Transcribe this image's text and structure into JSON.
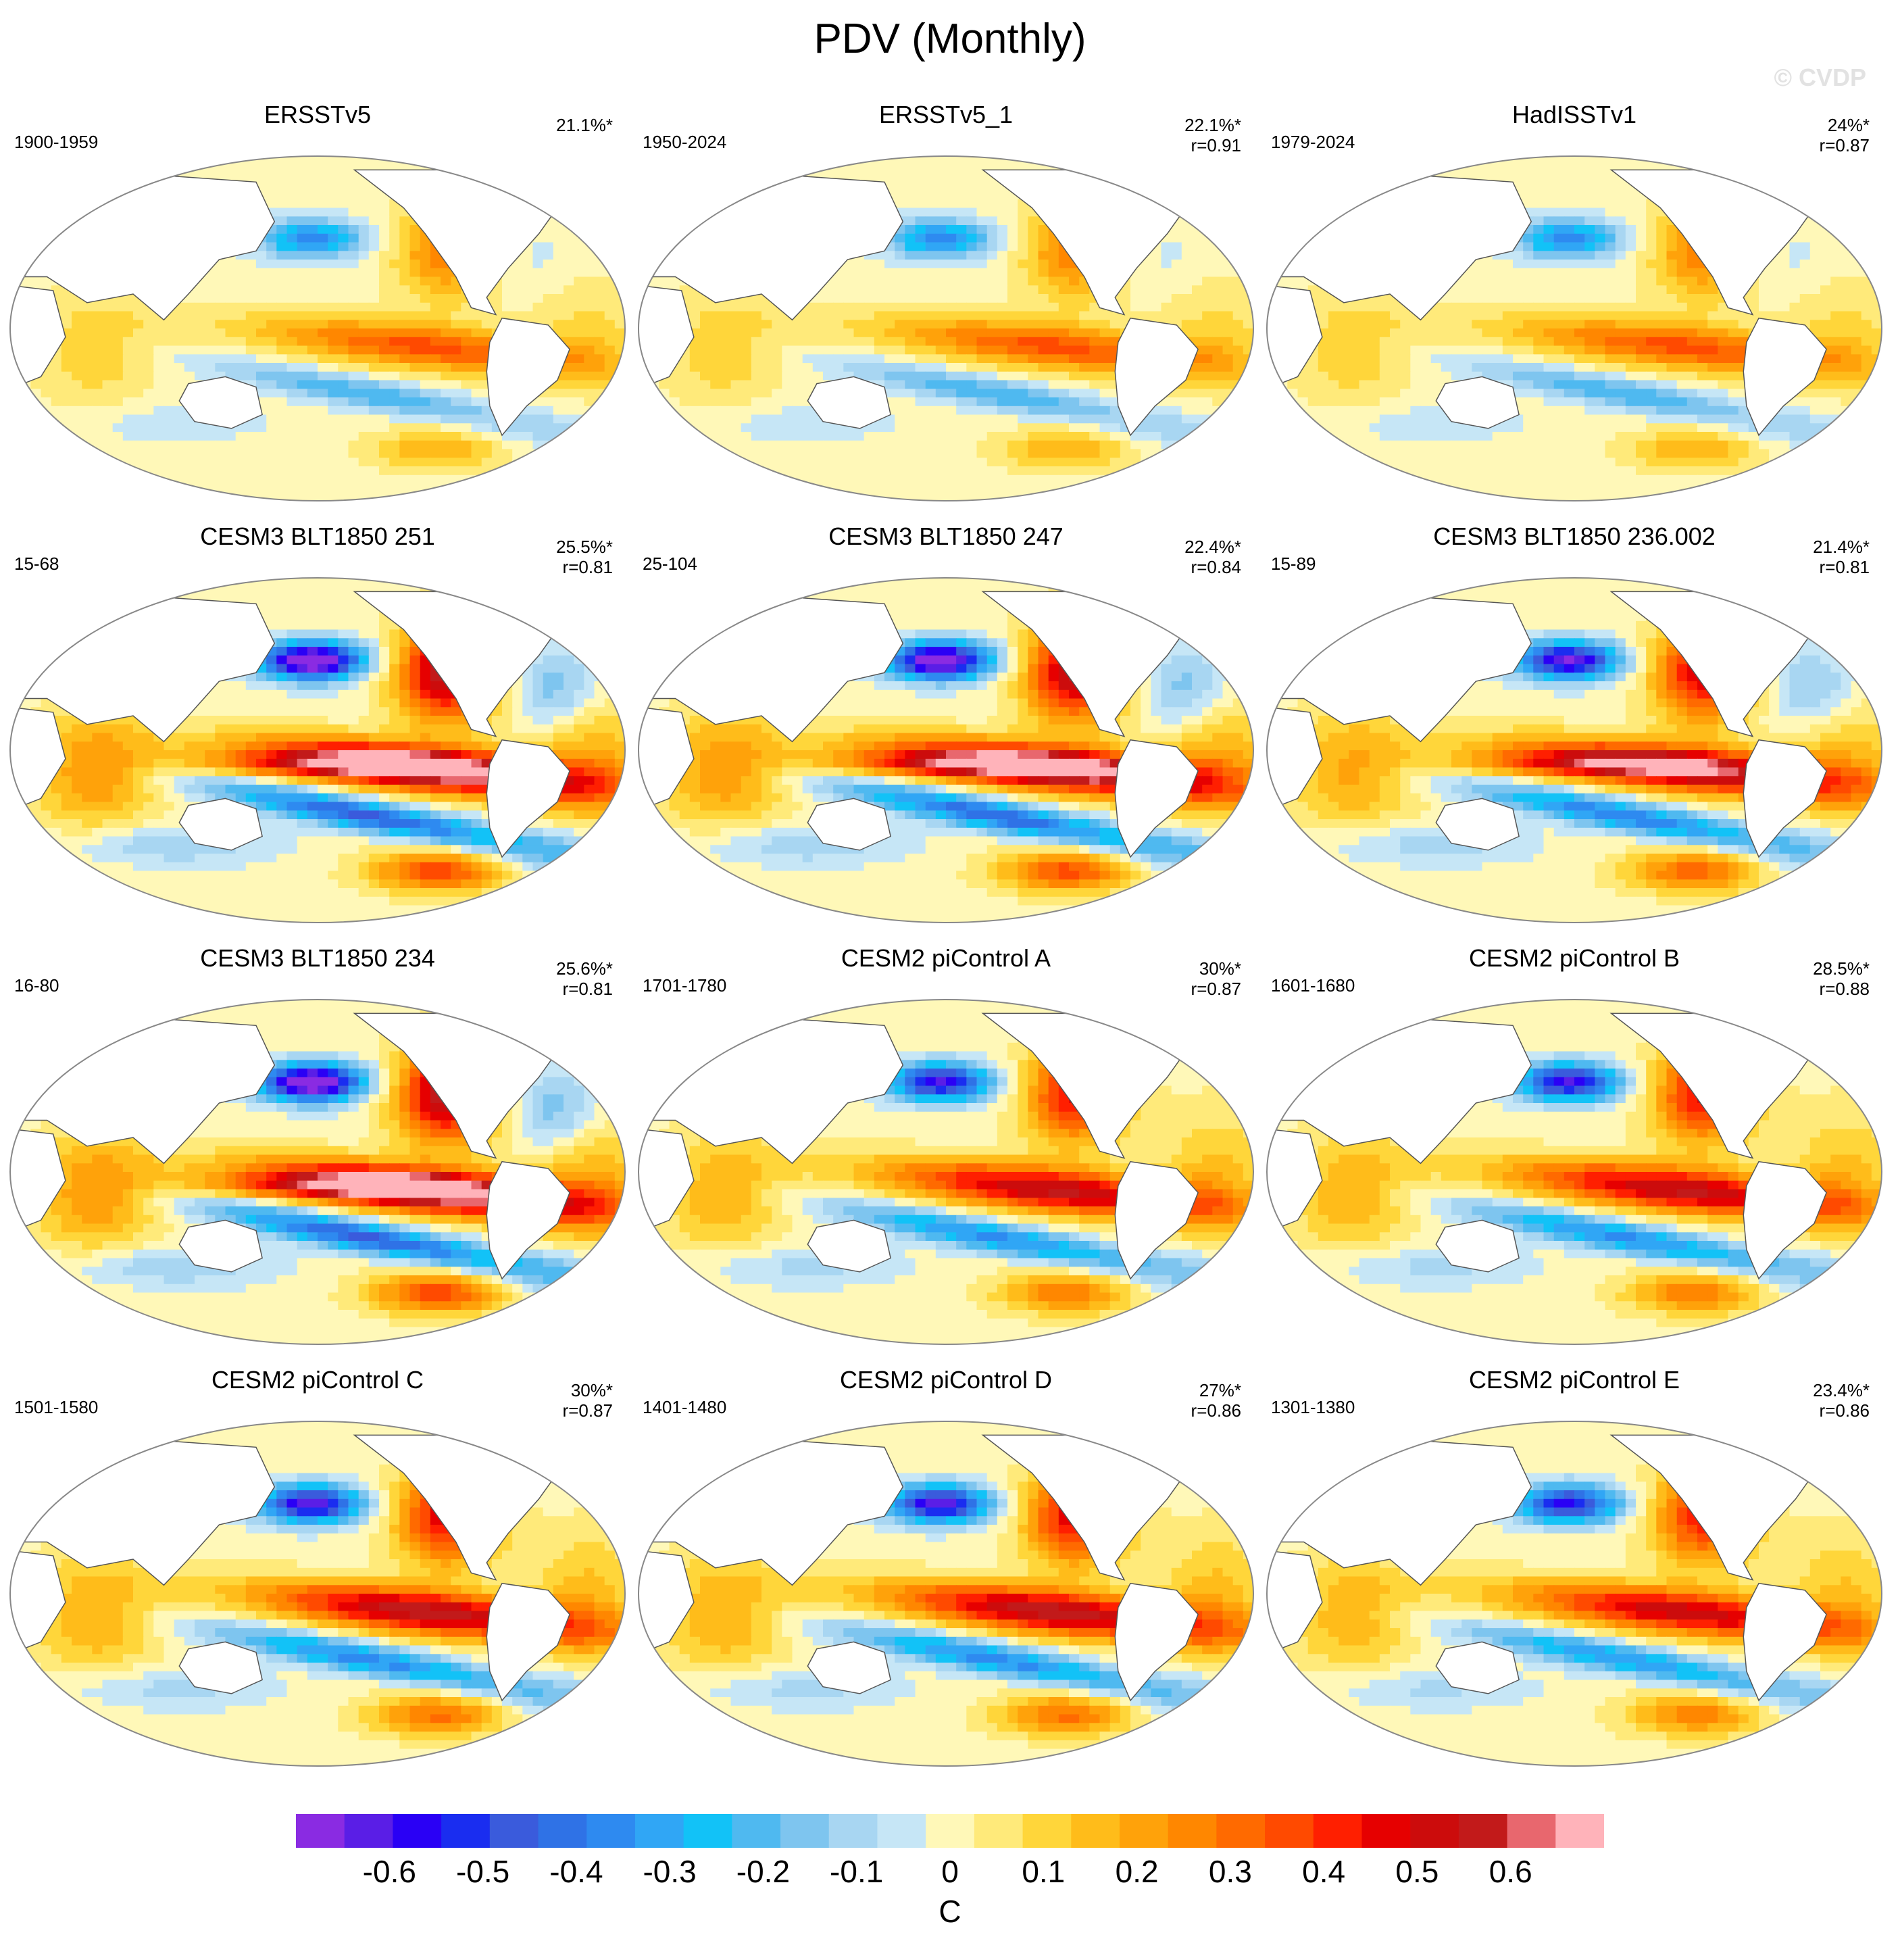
{
  "title": "PDV (Monthly)",
  "watermark": "© CVDP",
  "panels": [
    {
      "name": "ERSSTv5",
      "years": "1900-1959",
      "pct": "21.1%*",
      "r": "",
      "pattern": "obs",
      "amp": 0.85
    },
    {
      "name": "ERSSTv5_1",
      "years": "1950-2024",
      "pct": "22.1%*",
      "r": "r=0.91",
      "pattern": "obs",
      "amp": 0.85
    },
    {
      "name": "HadISSTv1",
      "years": "1979-2024",
      "pct": "24%*",
      "r": "r=0.87",
      "pattern": "obs",
      "amp": 0.85
    },
    {
      "name": "CESM3 BLT1850 251",
      "years": "15-68",
      "pct": "25.5%*",
      "r": "r=0.81",
      "pattern": "cesm3",
      "amp": 1.3
    },
    {
      "name": "CESM3 BLT1850 247",
      "years": "25-104",
      "pct": "22.4%*",
      "r": "r=0.84",
      "pattern": "cesm3",
      "amp": 1.25
    },
    {
      "name": "CESM3 BLT1850 236.002",
      "years": "15-89",
      "pct": "21.4%*",
      "r": "r=0.81",
      "pattern": "cesm3",
      "amp": 1.1
    },
    {
      "name": "CESM3 BLT1850 234",
      "years": "16-80",
      "pct": "25.6%*",
      "r": "r=0.81",
      "pattern": "cesm3",
      "amp": 1.3
    },
    {
      "name": "CESM2 piControl A",
      "years": "1701-1780",
      "pct": "30%*",
      "r": "r=0.87",
      "pattern": "cesm2",
      "amp": 1.0
    },
    {
      "name": "CESM2 piControl B",
      "years": "1601-1680",
      "pct": "28.5%*",
      "r": "r=0.88",
      "pattern": "cesm2",
      "amp": 1.0
    },
    {
      "name": "CESM2 piControl C",
      "years": "1501-1580",
      "pct": "30%*",
      "r": "r=0.87",
      "pattern": "cesm2",
      "amp": 1.05
    },
    {
      "name": "CESM2 piControl D",
      "years": "1401-1480",
      "pct": "27%*",
      "r": "r=0.86",
      "pattern": "cesm2",
      "amp": 1.05
    },
    {
      "name": "CESM2 piControl E",
      "years": "1301-1380",
      "pct": "23.4%*",
      "r": "r=0.86",
      "pattern": "cesm2",
      "amp": 0.95
    }
  ],
  "colorbar": {
    "colors": [
      "#8a2be2",
      "#5a1ee6",
      "#2a00f5",
      "#1a2df0",
      "#3a5bdc",
      "#2f72e6",
      "#2e8af0",
      "#30a6f5",
      "#12c2f7",
      "#4fb9f0",
      "#7ec5ef",
      "#a8d6f2",
      "#c6e6f6",
      "#fff8b8",
      "#ffea7a",
      "#ffd63a",
      "#ffbc1a",
      "#ffa20a",
      "#ff8700",
      "#ff6a00",
      "#ff4a00",
      "#ff1f00",
      "#e60000",
      "#cc0c0c",
      "#c21a1a",
      "#e8676e",
      "#ffb3ba"
    ],
    "ticks": [
      "-0.6",
      "-0.5",
      "-0.4",
      "-0.3",
      "-0.2",
      "-0.1",
      "0",
      "0.1",
      "0.2",
      "0.3",
      "0.4",
      "0.5",
      "0.6"
    ],
    "tick_values": [
      -0.6,
      -0.5,
      -0.4,
      -0.3,
      -0.2,
      -0.1,
      0,
      0.1,
      0.2,
      0.3,
      0.4,
      0.5,
      0.6
    ],
    "min": -0.7,
    "max": 0.7,
    "units": "C"
  }
}
